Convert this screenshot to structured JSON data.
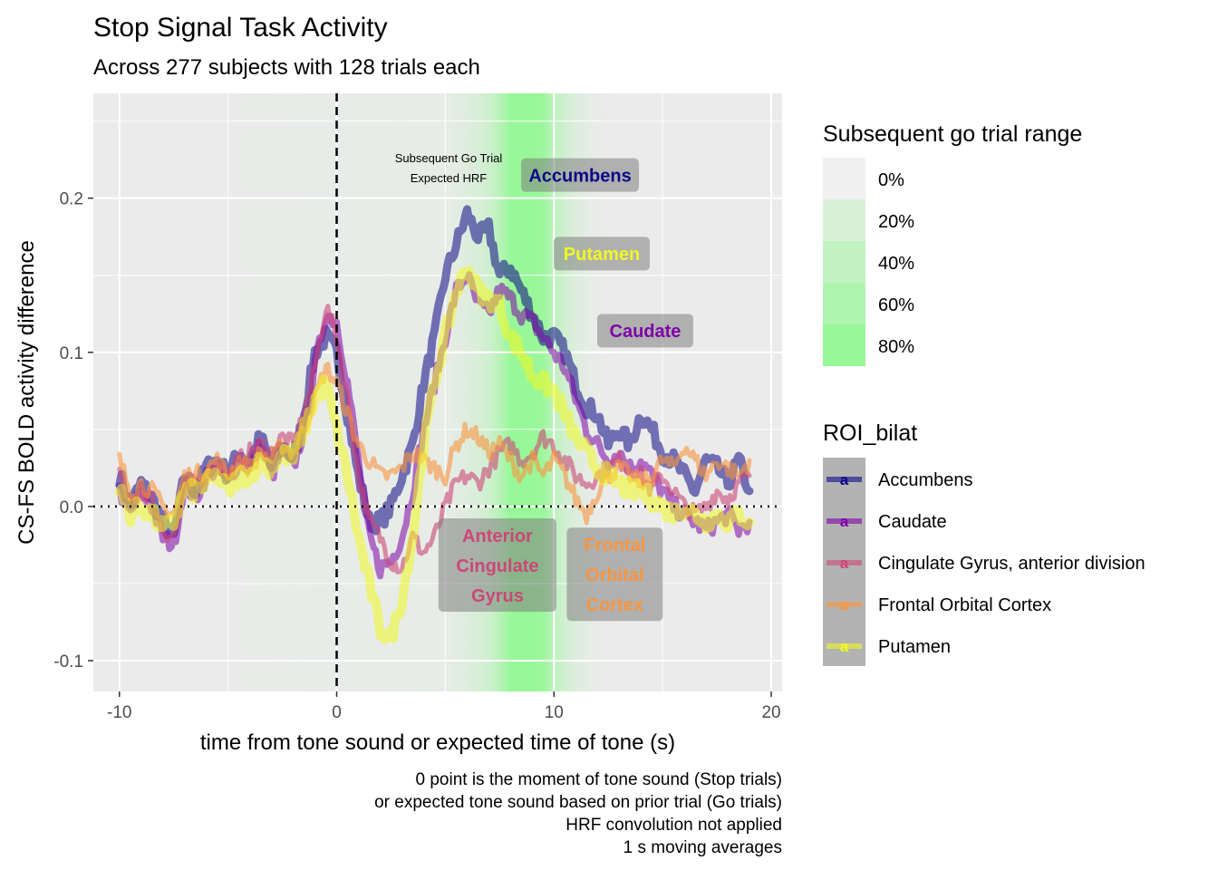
{
  "chart_data": {
    "type": "line",
    "title": "Stop Signal Task Activity",
    "subtitle": "Across 277 subjects with 128 trials each",
    "xlabel": "time from tone sound or expected time of tone (s)",
    "ylabel": "CS-FS BOLD activity difference",
    "xlim": [
      -11.2,
      20.5
    ],
    "ylim": [
      -0.12,
      0.268
    ],
    "xticks": [
      -10,
      0,
      10,
      20
    ],
    "xtick_labels": [
      "-10",
      "0",
      "10",
      "20"
    ],
    "yticks": [
      -0.1,
      0.0,
      0.1,
      0.2
    ],
    "ytick_labels": [
      "-0.1",
      "0.0",
      "0.1",
      "0.2"
    ],
    "grid": true,
    "caption": [
      "0 point is the moment of tone sound (Stop trials)",
      "or expected tone sound based on prior trial (Go trials)",
      "HRF convolution not applied",
      "1 s moving averages"
    ],
    "vline_x": 0,
    "hline_y": 0,
    "annotation": [
      "Subsequent Go Trial",
      "Expected HRF"
    ],
    "band": {
      "legend_title": "Subsequent go trial range",
      "legend_labels": [
        "0%",
        "20%",
        "40%",
        "60%",
        "80%"
      ],
      "legend_colors": [
        "#f0f0f0",
        "#d8f2d8",
        "#c3f2c3",
        "#aef4ae",
        "#98f798"
      ],
      "x": [
        5,
        5.5,
        6,
        6.5,
        7,
        7.5,
        8,
        8.5,
        9,
        9.5,
        10,
        10.5,
        11,
        11.5,
        12
      ],
      "intensity": [
        0.05,
        0.1,
        0.15,
        0.22,
        0.35,
        0.6,
        1.0,
        1.0,
        1.0,
        0.95,
        0.55,
        0.32,
        0.18,
        0.08,
        0.02
      ]
    },
    "legend_title": "ROI_bilat",
    "legend_glyph": "a",
    "series": [
      {
        "name": "Accumbens",
        "color": "#0d0887",
        "width": 9,
        "opacity": 0.55,
        "x": [
          -10,
          -9.5,
          -9,
          -8.5,
          -8,
          -7.5,
          -7,
          -6.5,
          -6,
          -5.5,
          -5,
          -4.5,
          -4,
          -3.5,
          -3,
          -2.5,
          -2,
          -1.5,
          -1,
          -0.5,
          0,
          0.5,
          1,
          1.5,
          2,
          2.5,
          3,
          3.5,
          4,
          4.5,
          5,
          5.5,
          6,
          6.5,
          7,
          7.5,
          8,
          8.5,
          9,
          9.5,
          10,
          10.5,
          11,
          11.5,
          12,
          12.5,
          13,
          13.5,
          14,
          14.5,
          15,
          15.5,
          16,
          16.5,
          17,
          17.5,
          18,
          18.5,
          19
        ],
        "y": [
          0.02,
          0.0,
          0.015,
          0.005,
          -0.01,
          -0.02,
          0.02,
          0.01,
          0.025,
          0.03,
          0.02,
          0.035,
          0.03,
          0.045,
          0.025,
          0.04,
          0.03,
          0.06,
          0.1,
          0.11,
          0.1,
          0.06,
          0.02,
          -0.01,
          -0.01,
          0.0,
          0.02,
          0.04,
          0.08,
          0.11,
          0.15,
          0.17,
          0.19,
          0.175,
          0.18,
          0.15,
          0.155,
          0.14,
          0.125,
          0.11,
          0.11,
          0.1,
          0.08,
          0.065,
          0.06,
          0.04,
          0.05,
          0.04,
          0.06,
          0.05,
          0.035,
          0.03,
          0.02,
          0.01,
          0.03,
          0.025,
          0.015,
          0.03,
          0.01
        ]
      },
      {
        "name": "Caudate",
        "color": "#7e03a8",
        "width": 7,
        "opacity": 0.55,
        "x": [
          -10,
          -9.5,
          -9,
          -8.5,
          -8,
          -7.5,
          -7,
          -6.5,
          -6,
          -5.5,
          -5,
          -4.5,
          -4,
          -3.5,
          -3,
          -2.5,
          -2,
          -1.5,
          -1,
          -0.5,
          0,
          0.5,
          1,
          1.5,
          2,
          2.5,
          3,
          3.5,
          4,
          4.5,
          5,
          5.5,
          6,
          6.5,
          7,
          7.5,
          8,
          8.5,
          9,
          9.5,
          10,
          10.5,
          11,
          11.5,
          12,
          12.5,
          13,
          13.5,
          14,
          14.5,
          15,
          15.5,
          16,
          16.5,
          17,
          17.5,
          18,
          18.5,
          19
        ],
        "y": [
          0.01,
          -0.005,
          0.01,
          0.0,
          -0.02,
          -0.025,
          0.015,
          0.005,
          0.02,
          0.025,
          0.015,
          0.03,
          0.025,
          0.04,
          0.02,
          0.035,
          0.025,
          0.05,
          0.09,
          0.125,
          0.12,
          0.08,
          0.03,
          -0.02,
          -0.04,
          -0.035,
          -0.02,
          0.01,
          0.05,
          0.08,
          0.11,
          0.14,
          0.15,
          0.13,
          0.125,
          0.14,
          0.135,
          0.125,
          0.12,
          0.11,
          0.1,
          0.09,
          0.07,
          0.05,
          0.04,
          0.03,
          0.035,
          0.025,
          0.03,
          0.02,
          0.01,
          0.0,
          -0.005,
          -0.01,
          -0.015,
          -0.01,
          -0.005,
          -0.015,
          -0.01
        ]
      },
      {
        "name": "Cingulate Gyrus, anterior division",
        "color": "#cc4778",
        "width": 5,
        "opacity": 0.6,
        "x": [
          -10,
          -9.5,
          -9,
          -8.5,
          -8,
          -7.5,
          -7,
          -6.5,
          -6,
          -5.5,
          -5,
          -4.5,
          -4,
          -3.5,
          -3,
          -2.5,
          -2,
          -1.5,
          -1,
          -0.5,
          0,
          0.5,
          1,
          1.5,
          2,
          2.5,
          3,
          3.5,
          4,
          4.5,
          5,
          5.5,
          6,
          6.5,
          7,
          7.5,
          8,
          8.5,
          9,
          9.5,
          10,
          10.5,
          11,
          11.5,
          12,
          12.5,
          13,
          13.5,
          14,
          14.5,
          15,
          15.5,
          16,
          16.5,
          17,
          17.5,
          18,
          18.5,
          19
        ],
        "y": [
          0.02,
          0.0,
          0.01,
          0.005,
          -0.015,
          -0.02,
          0.01,
          0.015,
          0.02,
          0.03,
          0.02,
          0.03,
          0.035,
          0.04,
          0.035,
          0.045,
          0.04,
          0.06,
          0.09,
          0.13,
          0.11,
          0.07,
          0.02,
          -0.01,
          -0.02,
          -0.035,
          -0.04,
          -0.02,
          -0.03,
          -0.02,
          0.0,
          0.015,
          0.02,
          0.015,
          0.025,
          0.035,
          0.04,
          0.03,
          0.035,
          0.045,
          0.04,
          0.03,
          0.02,
          0.015,
          0.02,
          0.025,
          0.03,
          0.025,
          0.02,
          0.01,
          0.02,
          0.01,
          0.0,
          -0.005,
          0.0,
          0.01,
          0.005,
          0.015,
          0.02
        ]
      },
      {
        "name": "Frontal Orbital Cortex",
        "color": "#f89540",
        "width": 5,
        "opacity": 0.6,
        "x": [
          -10,
          -9.5,
          -9,
          -8.5,
          -8,
          -7.5,
          -7,
          -6.5,
          -6,
          -5.5,
          -5,
          -4.5,
          -4,
          -3.5,
          -3,
          -2.5,
          -2,
          -1.5,
          -1,
          -0.5,
          0,
          0.5,
          1,
          1.5,
          2,
          2.5,
          3,
          3.5,
          4,
          4.5,
          5,
          5.5,
          6,
          6.5,
          7,
          7.5,
          8,
          8.5,
          9,
          9.5,
          10,
          10.5,
          11,
          11.5,
          12,
          12.5,
          13,
          13.5,
          14,
          14.5,
          15,
          15.5,
          16,
          16.5,
          17,
          17.5,
          18,
          18.5,
          19
        ],
        "y": [
          0.03,
          0.01,
          0.015,
          0.01,
          0.0,
          -0.005,
          0.02,
          0.02,
          0.025,
          0.03,
          0.02,
          0.03,
          0.025,
          0.035,
          0.03,
          0.04,
          0.035,
          0.05,
          0.07,
          0.09,
          0.08,
          0.06,
          0.04,
          0.03,
          0.02,
          0.02,
          0.025,
          0.035,
          0.03,
          0.025,
          0.02,
          0.04,
          0.05,
          0.045,
          0.035,
          0.04,
          0.03,
          0.02,
          0.03,
          0.02,
          0.03,
          0.02,
          0.005,
          -0.005,
          0.01,
          0.02,
          0.025,
          0.02,
          0.015,
          0.02,
          0.03,
          0.025,
          0.04,
          0.03,
          0.02,
          0.03,
          0.025,
          0.02,
          0.03
        ]
      },
      {
        "name": "Putamen",
        "color": "#f0f921",
        "width": 10,
        "opacity": 0.55,
        "x": [
          -10,
          -9.5,
          -9,
          -8.5,
          -8,
          -7.5,
          -7,
          -6.5,
          -6,
          -5.5,
          -5,
          -4.5,
          -4,
          -3.5,
          -3,
          -2.5,
          -2,
          -1.5,
          -1,
          -0.5,
          0,
          0.5,
          1,
          1.5,
          2,
          2.5,
          3,
          3.5,
          4,
          4.5,
          5,
          5.5,
          6,
          6.5,
          7,
          7.5,
          8,
          8.5,
          9,
          9.5,
          10,
          10.5,
          11,
          11.5,
          12,
          12.5,
          13,
          13.5,
          14,
          14.5,
          15,
          15.5,
          16,
          16.5,
          17,
          17.5,
          18,
          18.5,
          19
        ],
        "y": [
          0.01,
          -0.005,
          0.0,
          -0.005,
          -0.015,
          -0.01,
          0.01,
          0.01,
          0.015,
          0.02,
          0.01,
          0.02,
          0.02,
          0.03,
          0.025,
          0.035,
          0.03,
          0.05,
          0.07,
          0.08,
          0.05,
          0.02,
          -0.02,
          -0.05,
          -0.08,
          -0.085,
          -0.06,
          -0.02,
          0.04,
          0.08,
          0.11,
          0.14,
          0.155,
          0.14,
          0.135,
          0.13,
          0.11,
          0.1,
          0.085,
          0.08,
          0.075,
          0.06,
          0.045,
          0.035,
          0.025,
          0.02,
          0.015,
          0.01,
          0.01,
          0.005,
          0.0,
          -0.005,
          0.0,
          -0.005,
          -0.01,
          -0.005,
          -0.01,
          -0.005,
          -0.01
        ]
      }
    ],
    "roi_labels": [
      {
        "lines": [
          "Accumbens"
        ],
        "x": 11.2,
        "y": 0.215,
        "color": "#0d0887"
      },
      {
        "lines": [
          "Putamen"
        ],
        "x": 12.2,
        "y": 0.164,
        "color": "#f0f921"
      },
      {
        "lines": [
          "Caudate"
        ],
        "x": 14.2,
        "y": 0.114,
        "color": "#7e03a8"
      },
      {
        "lines": [
          "Anterior",
          "Cingulate",
          "Gyrus"
        ],
        "x": 7.4,
        "y": -0.038,
        "color": "#cc4778"
      },
      {
        "lines": [
          "Frontal",
          "Orbital",
          "Cortex"
        ],
        "x": 12.8,
        "y": -0.044,
        "color": "#f89540"
      }
    ]
  }
}
